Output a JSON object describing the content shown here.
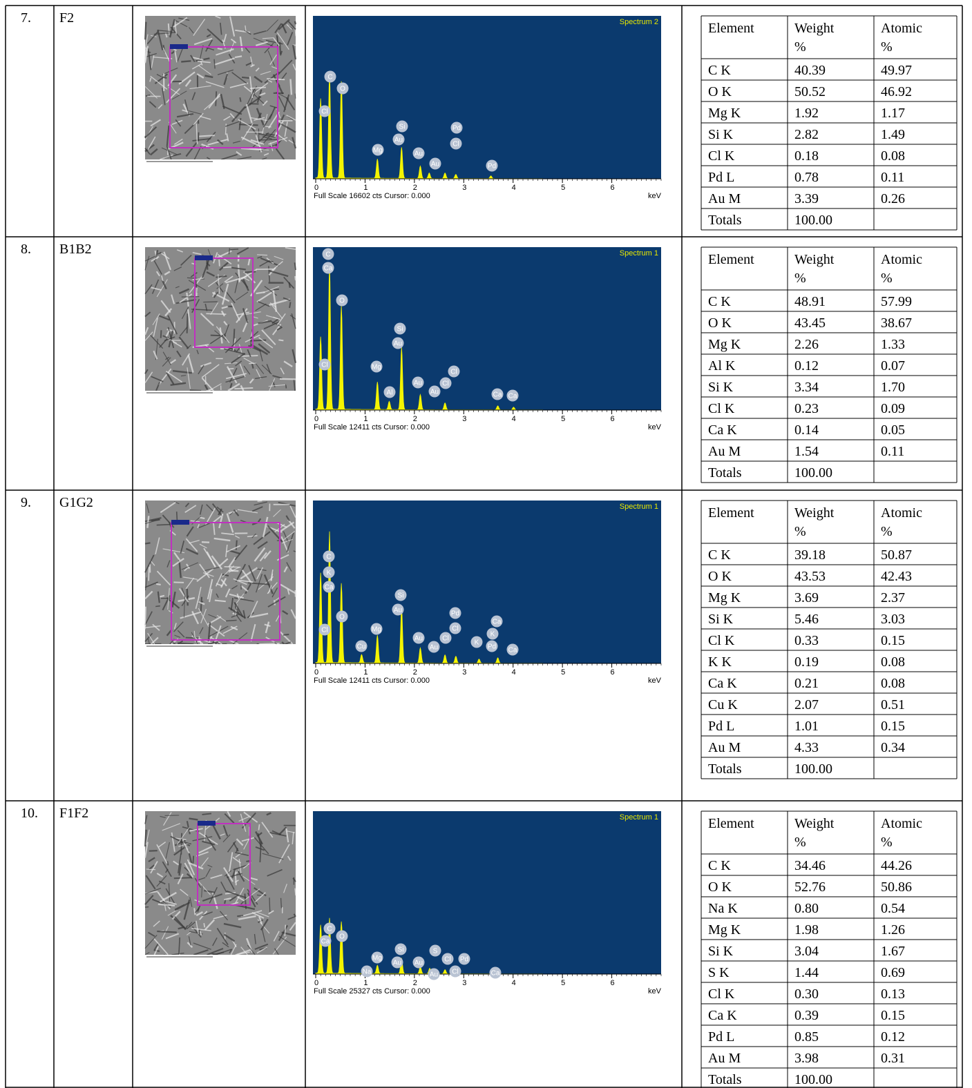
{
  "rows": [
    {
      "number": "7.",
      "sample": "F2",
      "spectrum": {
        "title": "Spectrum 2",
        "xlim": [
          0,
          7
        ],
        "xticks": [
          0,
          1,
          2,
          3,
          4,
          5,
          6
        ],
        "footer": "Full Scale 16602 cts Cursor: 0.000",
        "unit": "keV",
        "peak_labels": [
          "C",
          "O",
          "Cl",
          "Si",
          "Au",
          "Mg",
          "Pd",
          "Cl",
          "Au",
          "Au",
          "Pd"
        ]
      },
      "composition": {
        "header": [
          [
            "Element"
          ],
          [
            "Weight",
            "%"
          ],
          [
            "Atomic",
            "%"
          ]
        ],
        "rows": [
          [
            "C K",
            "40.39",
            "49.97"
          ],
          [
            "O K",
            "50.52",
            "46.92"
          ],
          [
            "Mg K",
            "1.92",
            "1.17"
          ],
          [
            "Si K",
            "2.82",
            "1.49"
          ],
          [
            "Cl K",
            "0.18",
            "0.08"
          ],
          [
            "Pd L",
            "0.78",
            "0.11"
          ],
          [
            "Au M",
            "3.39",
            "0.26"
          ],
          [
            "Totals",
            "100.00"
          ]
        ]
      }
    },
    {
      "number": "8.",
      "sample": "B1B2",
      "spectrum": {
        "title": "Spectrum 1",
        "xlim": [
          0,
          7
        ],
        "xticks": [
          0,
          1,
          2,
          3,
          4,
          5,
          6
        ],
        "footer": "Full Scale 12411 cts Cursor: 0.000",
        "unit": "keV",
        "peak_labels": [
          "C",
          "Ca",
          "O",
          "Si",
          "Au",
          "Mg",
          "Cl",
          "Al",
          "Au",
          "Au",
          "Cl",
          "Cl",
          "Ca",
          "Ca"
        ]
      },
      "composition": {
        "header": [
          [
            "Element"
          ],
          [
            "Weight",
            "%"
          ],
          [
            "Atomic",
            "%"
          ]
        ],
        "rows": [
          [
            "C K",
            "48.91",
            "57.99"
          ],
          [
            "O K",
            "43.45",
            "38.67"
          ],
          [
            "Mg K",
            "2.26",
            "1.33"
          ],
          [
            "Al K",
            "0.12",
            "0.07"
          ],
          [
            "Si K",
            "3.34",
            "1.70"
          ],
          [
            "Cl K",
            "0.23",
            "0.09"
          ],
          [
            "Ca K",
            "0.14",
            "0.05"
          ],
          [
            "Au M",
            "1.54",
            "0.11"
          ],
          [
            "Totals",
            "100.00"
          ]
        ]
      }
    },
    {
      "number": "9.",
      "sample": "G1G2",
      "spectrum": {
        "title": "Spectrum 1",
        "xlim": [
          0,
          7
        ],
        "xticks": [
          0,
          1,
          2,
          3,
          4,
          5,
          6
        ],
        "footer": "Full Scale 12411 cts Cursor: 0.000",
        "unit": "keV",
        "peak_labels": [
          "C",
          "K",
          "Ca",
          "O",
          "Si",
          "Au",
          "Mg",
          "Cl",
          "Cu",
          "Pd",
          "Cl",
          "Au",
          "Au",
          "Cl",
          "K",
          "Ca",
          "K",
          "Pd",
          "Ca"
        ]
      },
      "composition": {
        "header": [
          [
            "Element"
          ],
          [
            "Weight",
            "%"
          ],
          [
            "Atomic",
            "%"
          ]
        ],
        "rows": [
          [
            "C K",
            "39.18",
            "50.87"
          ],
          [
            "O K",
            "43.53",
            "42.43"
          ],
          [
            "Mg K",
            "3.69",
            "2.37"
          ],
          [
            "Si K",
            "5.46",
            "3.03"
          ],
          [
            "Cl K",
            "0.33",
            "0.15"
          ],
          [
            "K K",
            "0.19",
            "0.08"
          ],
          [
            "Ca K",
            "0.21",
            "0.08"
          ],
          [
            "Cu K",
            "2.07",
            "0.51"
          ],
          [
            "Pd L",
            "1.01",
            "0.15"
          ],
          [
            "Au M",
            "4.33",
            "0.34"
          ],
          [
            "Totals",
            "100.00"
          ]
        ]
      }
    },
    {
      "number": "10.",
      "sample": "F1F2",
      "spectrum": {
        "title": "Spectrum 1",
        "xlim": [
          0,
          7
        ],
        "xticks": [
          0,
          1,
          2,
          3,
          4,
          5,
          6
        ],
        "footer": "Full Scale 25327 cts Cursor: 0.000",
        "unit": "keV",
        "peak_labels": [
          "C",
          "Ca",
          "O",
          "Si",
          "Au",
          "Mg",
          "Na",
          "Au",
          "S",
          "Au",
          "Cl",
          "Pd",
          "Cl",
          "Ca"
        ]
      },
      "composition": {
        "header": [
          [
            "Element"
          ],
          [
            "Weight",
            "%"
          ],
          [
            "Atomic",
            "%"
          ]
        ],
        "rows": [
          [
            "C K",
            "34.46",
            "44.26"
          ],
          [
            "O K",
            "52.76",
            "50.86"
          ],
          [
            "Na K",
            "0.80",
            "0.54"
          ],
          [
            "Mg K",
            "1.98",
            "1.26"
          ],
          [
            "Si K",
            "3.04",
            "1.67"
          ],
          [
            "S K",
            "1.44",
            "0.69"
          ],
          [
            "Cl K",
            "0.30",
            "0.13"
          ],
          [
            "Ca K",
            "0.39",
            "0.15"
          ],
          [
            "Pd L",
            "0.85",
            "0.12"
          ],
          [
            "Au M",
            "3.98",
            "0.31"
          ],
          [
            "Totals",
            "100.00"
          ]
        ]
      }
    }
  ]
}
